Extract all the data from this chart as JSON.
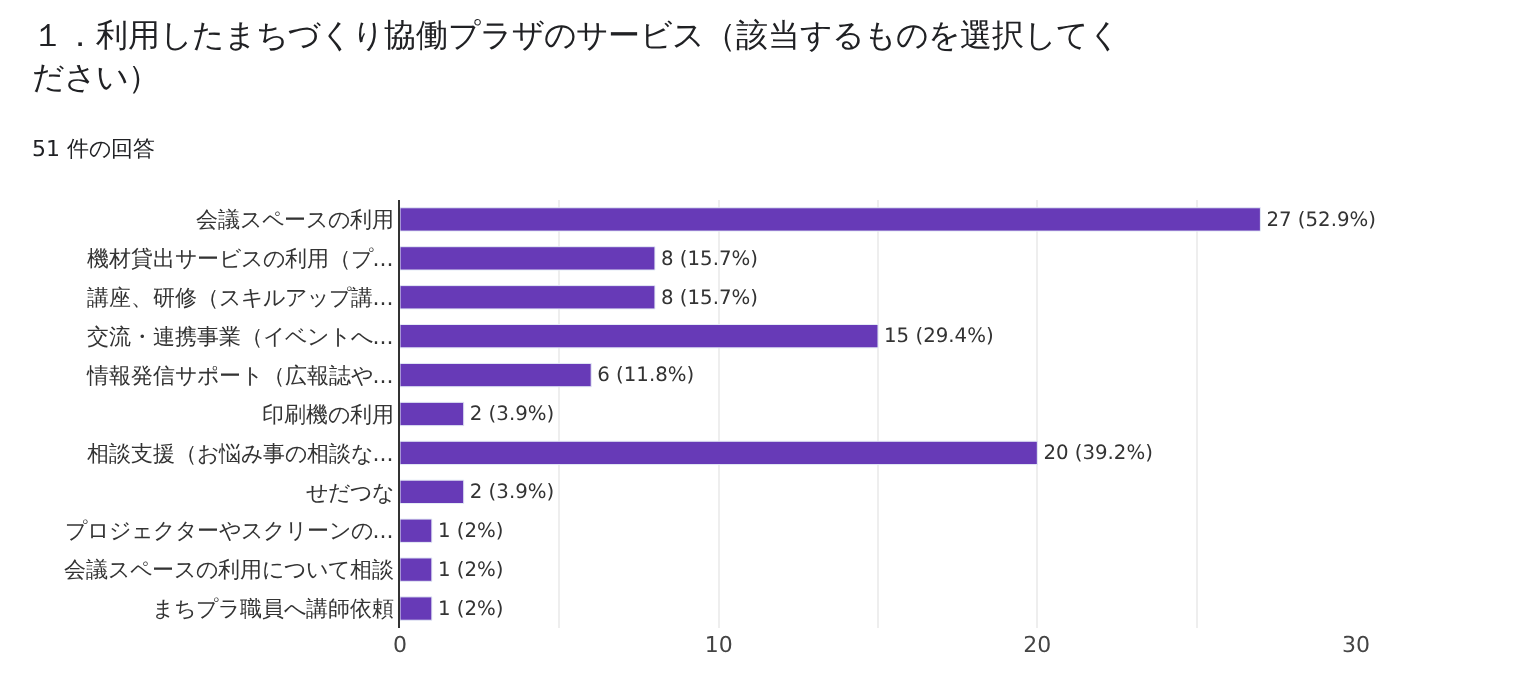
{
  "chart_data": {
    "type": "bar",
    "orientation": "horizontal",
    "title": "１．利用したまちづくり協働プラザのサービス（該当するものを選択してください）",
    "subtitle": "51 件の回答",
    "categories": [
      "会議スペースの利用",
      "機材貸出サービスの利用（プ...",
      "講座、研修（スキルアップ講...",
      "交流・連携事業（イベントへ...",
      "情報発信サポート（広報誌や...",
      "印刷機の利用",
      "相談支援（お悩み事の相談な...",
      "せだつな",
      "プロジェクターやスクリーンの...",
      "会議スペースの利用について相談",
      "まちプラ職員へ講師依頼"
    ],
    "values": [
      27,
      8,
      8,
      15,
      6,
      2,
      20,
      2,
      1,
      1,
      1
    ],
    "value_labels": [
      "27 (52.9%)",
      "8 (15.7%)",
      "8 (15.7%)",
      "15 (29.4%)",
      "6 (11.8%)",
      "2 (3.9%)",
      "20 (39.2%)",
      "2 (3.9%)",
      "1 (2%)",
      "1 (2%)",
      "1 (2%)"
    ],
    "color": "#673ab7",
    "xlim": [
      0,
      30
    ],
    "xticks": [
      0,
      {
        "value": 5,
        "label": null
      },
      10,
      {
        "value": 15,
        "label": null
      },
      20,
      {
        "value": 25,
        "label": null
      },
      30
    ],
    "grid": "x",
    "legend": false
  }
}
